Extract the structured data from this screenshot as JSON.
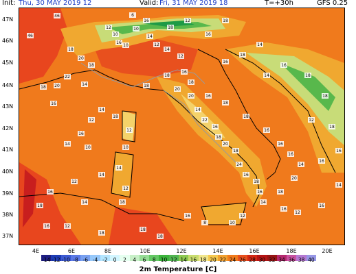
{
  "header": {
    "init_label": "Init:",
    "init_value": "Thu, 30 MAY 2019  12",
    "valid_label": "Valid:",
    "valid_value": "Fri, 31 MAY 2019  18",
    "lead_time": "T=+30h",
    "model": "GFS 0.25"
  },
  "map": {
    "lat_labels": [
      "47N",
      "46N",
      "45N",
      "44N",
      "43N",
      "42N",
      "41N",
      "40N",
      "39N",
      "38N",
      "37N"
    ],
    "lon_labels": [
      "4E",
      "6E",
      "8E",
      "10E",
      "12E",
      "14E",
      "16E",
      "18E",
      "20E"
    ],
    "colors": {
      "sea_orange": "#f07a1c",
      "warm_red": "#e8461e",
      "hot_red": "#c81e1e",
      "cool_yellow": "#f0a830",
      "light_yellow": "#f4d26a",
      "pale_green": "#c8dc78",
      "green": "#58b84c",
      "dark_green": "#1e9a46",
      "border_line": "#000000",
      "region_line": "#9a9a9a"
    }
  },
  "colorbar": {
    "title": "2m Temperature [C]",
    "ticks": [
      "-14",
      "-12",
      "-10",
      "-8",
      "-6",
      "-4",
      "-2",
      "0",
      "2",
      "4",
      "6",
      "8",
      "10",
      "12",
      "14",
      "16",
      "18",
      "20",
      "22",
      "24",
      "26",
      "28",
      "30",
      "32",
      "34",
      "36",
      "38",
      "40"
    ],
    "colors": [
      "#1e1e82",
      "#1e3cb4",
      "#3c5ad2",
      "#5a78e6",
      "#78a0f0",
      "#96c8fa",
      "#b4e6ff",
      "#d2f5ff",
      "#e6fff0",
      "#c8f0c8",
      "#96dc96",
      "#64c864",
      "#3cb43c",
      "#50b450",
      "#8cc850",
      "#c8dc6e",
      "#f0e68c",
      "#f4c850",
      "#f0a030",
      "#f07a1c",
      "#e8501e",
      "#d22814",
      "#b41414",
      "#961414",
      "#b4286e",
      "#c850a0",
      "#b478d2",
      "#9696e6"
    ]
  },
  "values": [
    {
      "t": "46"
    },
    {
      "t": "46"
    },
    {
      "t": "18"
    },
    {
      "t": "20"
    },
    {
      "t": "18"
    },
    {
      "t": "22"
    },
    {
      "t": "20"
    },
    {
      "t": "18"
    },
    {
      "t": "16"
    },
    {
      "t": "14"
    },
    {
      "t": "12"
    },
    {
      "t": "10"
    },
    {
      "t": "16"
    },
    {
      "t": "10"
    },
    {
      "t": "6"
    },
    {
      "t": "10"
    },
    {
      "t": "14"
    },
    {
      "t": "12"
    },
    {
      "t": "14"
    },
    {
      "t": "12"
    },
    {
      "t": "16"
    },
    {
      "t": "18"
    },
    {
      "t": "20"
    },
    {
      "t": "14"
    },
    {
      "t": "22"
    },
    {
      "t": "16"
    },
    {
      "t": "18"
    },
    {
      "t": "20"
    },
    {
      "t": "18"
    },
    {
      "t": "24"
    },
    {
      "t": "16"
    },
    {
      "t": "18"
    },
    {
      "t": "16"
    },
    {
      "t": "14"
    },
    {
      "t": "12"
    },
    {
      "t": "10"
    },
    {
      "t": "8"
    },
    {
      "t": "16"
    },
    {
      "t": "18"
    },
    {
      "t": "18"
    },
    {
      "t": "18"
    },
    {
      "t": "12"
    },
    {
      "t": "14"
    },
    {
      "t": "10"
    },
    {
      "t": "12"
    },
    {
      "t": "18"
    },
    {
      "t": "14"
    },
    {
      "t": "12"
    },
    {
      "t": "16"
    },
    {
      "t": "14"
    },
    {
      "t": "10"
    },
    {
      "t": "14"
    },
    {
      "t": "12"
    },
    {
      "t": "16"
    },
    {
      "t": "18"
    },
    {
      "t": "16"
    },
    {
      "t": "18"
    },
    {
      "t": "14"
    },
    {
      "t": "12"
    },
    {
      "t": "18"
    },
    {
      "t": "18"
    },
    {
      "t": "20"
    },
    {
      "t": "16"
    },
    {
      "t": "18"
    },
    {
      "t": "18"
    },
    {
      "t": "16"
    },
    {
      "t": "16"
    },
    {
      "t": "16"
    },
    {
      "t": "14"
    },
    {
      "t": "12"
    },
    {
      "t": "18"
    },
    {
      "t": "18"
    },
    {
      "t": "16"
    },
    {
      "t": "16"
    },
    {
      "t": "20"
    },
    {
      "t": "18"
    },
    {
      "t": "16"
    },
    {
      "t": "12"
    },
    {
      "t": "16"
    },
    {
      "t": "14"
    },
    {
      "t": "14"
    },
    {
      "t": "16"
    },
    {
      "t": "18"
    },
    {
      "t": "16"
    },
    {
      "t": "18"
    },
    {
      "t": "14"
    },
    {
      "t": "16"
    },
    {
      "t": "18"
    },
    {
      "t": "12"
    },
    {
      "t": "18"
    },
    {
      "t": "16"
    }
  ]
}
